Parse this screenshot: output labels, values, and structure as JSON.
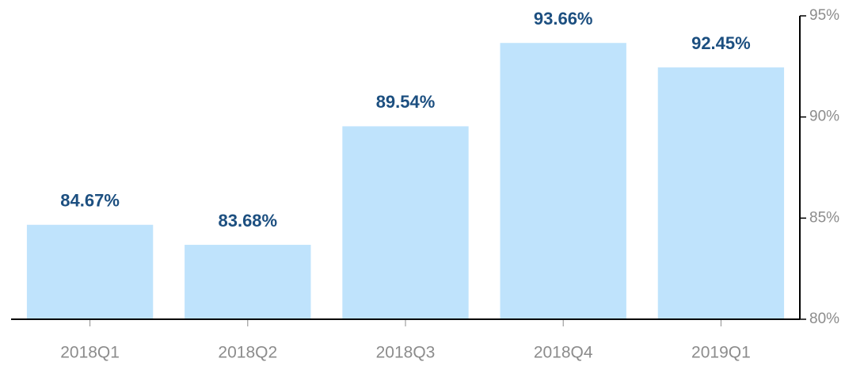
{
  "chart_data": {
    "type": "bar",
    "categories": [
      "2018Q1",
      "2018Q2",
      "2018Q3",
      "2018Q4",
      "2019Q1"
    ],
    "values": [
      84.67,
      83.68,
      89.54,
      93.66,
      92.45
    ],
    "value_labels": [
      "84.67%",
      "83.68%",
      "89.54%",
      "93.66%",
      "92.45%"
    ],
    "color": "#bfe3fc",
    "ylim": [
      80,
      95
    ],
    "yticks": [
      {
        "value": 80,
        "label": "80%"
      },
      {
        "value": 85,
        "label": "85%"
      },
      {
        "value": 90,
        "label": "90%"
      },
      {
        "value": 95,
        "label": "95%"
      }
    ],
    "y_axis_side": "right",
    "grid": false
  }
}
